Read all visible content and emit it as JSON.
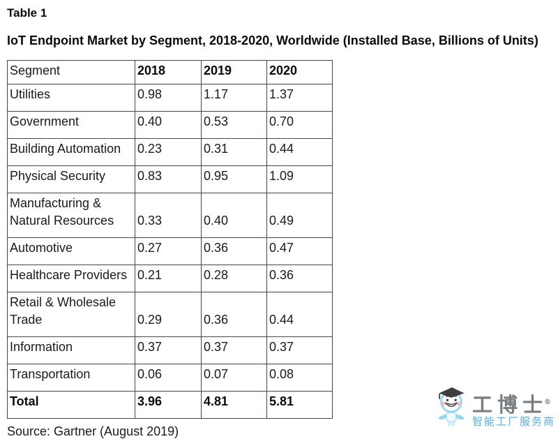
{
  "page": {
    "table_label": "Table 1",
    "title": "IoT Endpoint Market by Segment, 2018-2020, Worldwide (Installed Base, Billions of Units)",
    "source": "Source: Gartner (August 2019)"
  },
  "chart_data": {
    "type": "table",
    "title": "IoT Endpoint Market by Segment, 2018-2020, Worldwide (Installed Base, Billions of Units)",
    "columns": [
      "Segment",
      "2018",
      "2019",
      "2020"
    ],
    "rows": [
      {
        "segment": "Utilities",
        "values": [
          "0.98",
          "1.17",
          "1.37"
        ],
        "bold": false
      },
      {
        "segment": "Government",
        "values": [
          "0.40",
          "0.53",
          "0.70"
        ],
        "bold": false
      },
      {
        "segment": "Building Automation",
        "values": [
          "0.23",
          "0.31",
          "0.44"
        ],
        "bold": false
      },
      {
        "segment": "Physical Security",
        "values": [
          "0.83",
          "0.95",
          "1.09"
        ],
        "bold": false
      },
      {
        "segment": "Manufacturing & Natural Resources",
        "values": [
          "0.33",
          "0.40",
          "0.49"
        ],
        "bold": false
      },
      {
        "segment": "Automotive",
        "values": [
          "0.27",
          "0.36",
          "0.47"
        ],
        "bold": false
      },
      {
        "segment": "Healthcare Providers",
        "values": [
          "0.21",
          "0.28",
          "0.36"
        ],
        "bold": false
      },
      {
        "segment": "Retail & Wholesale Trade",
        "values": [
          "0.29",
          "0.36",
          "0.44"
        ],
        "bold": false
      },
      {
        "segment": "Information",
        "values": [
          "0.37",
          "0.37",
          "0.37"
        ],
        "bold": false
      },
      {
        "segment": "Transportation",
        "values": [
          "0.06",
          "0.07",
          "0.08"
        ],
        "bold": false
      },
      {
        "segment": "Total",
        "values": [
          "3.96",
          "4.81",
          "5.81"
        ],
        "bold": true
      }
    ],
    "source_note": "Source: Gartner (August 2019)"
  },
  "watermark": {
    "mascot_icon": "graduate-mascot-icon",
    "brand": "工博士",
    "registered": "®",
    "tagline": "智能工厂服务商",
    "brand_color": "#6d7277",
    "tagline_color": "#4ba6d5"
  }
}
